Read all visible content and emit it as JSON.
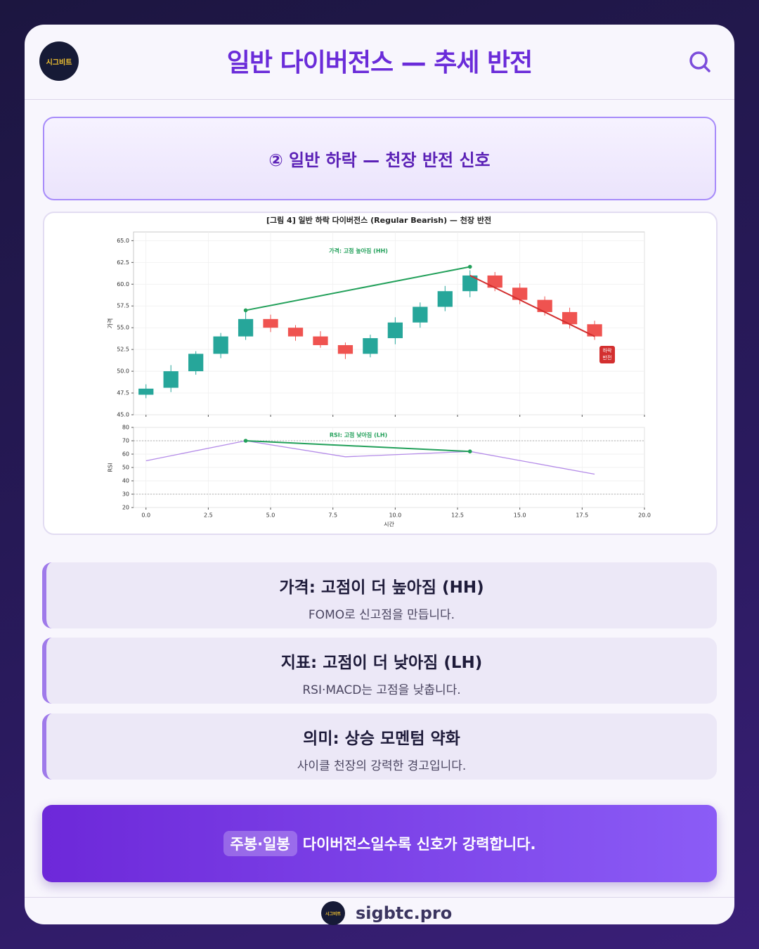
{
  "header": {
    "logo": "시그비트",
    "title": "일반 다이버전스 — 추세 반전"
  },
  "section_title": "② 일반 하락 — 천장 반전 신호",
  "chart_data": [
    {
      "type": "candlestick",
      "title": "[그림 4] 일반 하락 다이버전스 (Regular Bearish) — 천장 반전",
      "ylabel": "가격",
      "x": [
        0,
        1,
        2,
        3,
        4,
        5,
        6,
        7,
        8,
        9,
        10,
        11,
        12,
        13,
        14,
        15,
        16,
        17,
        18
      ],
      "open": [
        47.3,
        48.1,
        50.0,
        52.0,
        54.0,
        56.0,
        55.0,
        54.0,
        53.0,
        52.0,
        53.8,
        55.6,
        57.4,
        59.2,
        61.0,
        59.6,
        58.2,
        56.8,
        55.4
      ],
      "high": [
        48.5,
        50.7,
        52.3,
        54.4,
        57.0,
        56.5,
        55.3,
        54.6,
        53.3,
        54.2,
        56.2,
        57.9,
        59.8,
        61.6,
        61.4,
        60.1,
        58.6,
        57.3,
        55.8
      ],
      "low": [
        46.9,
        47.6,
        49.6,
        51.5,
        53.6,
        54.5,
        53.5,
        52.7,
        51.4,
        51.6,
        53.1,
        55.0,
        56.9,
        58.5,
        59.2,
        57.7,
        56.4,
        54.9,
        53.6
      ],
      "close": [
        48.0,
        50.0,
        52.0,
        54.0,
        56.0,
        55.0,
        54.0,
        53.0,
        52.0,
        53.8,
        55.6,
        57.4,
        59.2,
        61.0,
        59.6,
        58.2,
        56.8,
        55.4,
        54.0
      ],
      "up_color": "#26a69a",
      "down_color": "#ef5350",
      "xlim": [
        -0.5,
        20
      ],
      "ylim": [
        45,
        66
      ],
      "yticks": [
        {
          "value": 45,
          "label": "45.0"
        },
        {
          "value": 47.5,
          "label": "47.5"
        },
        {
          "value": 50,
          "label": "50.0"
        },
        {
          "value": 52.5,
          "label": "52.5"
        },
        {
          "value": 55,
          "label": "55.0"
        },
        {
          "value": 57.5,
          "label": "57.5"
        },
        {
          "value": 60,
          "label": "60.0"
        },
        {
          "value": 62.5,
          "label": "62.5"
        },
        {
          "value": 65,
          "label": "65.0"
        }
      ],
      "xticks": [
        0,
        2.5,
        5,
        7.5,
        10,
        12.5,
        15,
        17.5,
        20
      ],
      "grid": true,
      "trendlines": [
        {
          "x": [
            4,
            13
          ],
          "values": [
            57,
            62
          ],
          "color": "#22a05a",
          "markers": true
        },
        {
          "x": [
            13,
            18
          ],
          "values": [
            61,
            54
          ],
          "color": "#d32f2f",
          "markers": false
        }
      ],
      "annotation": "가격: 고점 높아짐 (HH)",
      "badge": [
        "하락",
        "반전"
      ]
    },
    {
      "type": "line",
      "ylabel": "RSI",
      "xlabel": "시간",
      "x": [
        0,
        4,
        8,
        13,
        18
      ],
      "values": [
        55,
        70,
        58,
        62,
        45
      ],
      "color": "#b48be8",
      "xlim": [
        -0.5,
        20
      ],
      "ylim": [
        20,
        80
      ],
      "yticks": [
        20,
        30,
        40,
        50,
        60,
        70,
        80
      ],
      "xticks": [
        {
          "value": 0,
          "label": "0.0"
        },
        {
          "value": 2.5,
          "label": "2.5"
        },
        {
          "value": 5,
          "label": "5.0"
        },
        {
          "value": 7.5,
          "label": "7.5"
        },
        {
          "value": 10,
          "label": "10.0"
        },
        {
          "value": 12.5,
          "label": "12.5"
        },
        {
          "value": 15,
          "label": "15.0"
        },
        {
          "value": 17.5,
          "label": "17.5"
        },
        {
          "value": 20,
          "label": "20.0"
        }
      ],
      "grid": true,
      "hlines": [
        70,
        30
      ],
      "trendlines": [
        {
          "x": [
            4,
            13
          ],
          "values": [
            70,
            62
          ],
          "color": "#22a05a",
          "markers": true
        }
      ],
      "annotation": "RSI: 고점 낮아짐 (LH)"
    }
  ],
  "cards": [
    {
      "title": "가격: 고점이 더 높아짐 (HH)",
      "text": "FOMO로 신고점을 만듭니다."
    },
    {
      "title": "지표: 고점이 더 낮아짐 (LH)",
      "text": "RSI·MACD는 고점을 낮춥니다."
    },
    {
      "title": "의미: 상승 모멘텀 약화",
      "text": "사이클 천장의 강력한 경고입니다."
    }
  ],
  "banner": {
    "highlight": "주봉·일봉",
    "text": "다이버전스일수록 신호가 강력합니다."
  },
  "footer": {
    "logo": "시그비트",
    "site": "sigbtc.pro"
  }
}
